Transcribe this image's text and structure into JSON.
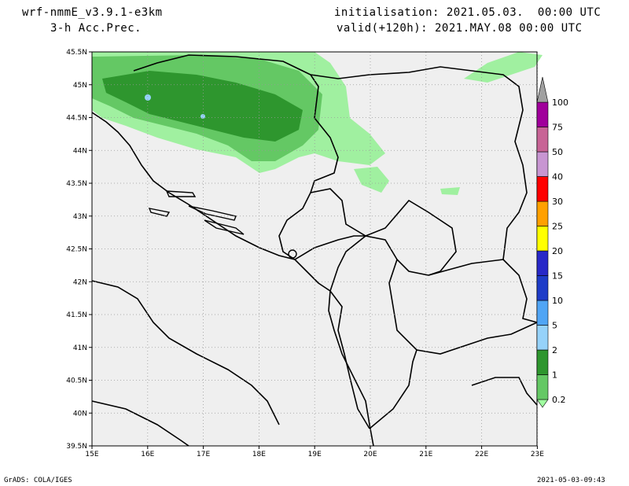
{
  "header": {
    "model": "wrf-nmmE_v3.9.1-e3km",
    "field": "3-h Acc.Prec.",
    "init": "initialisation: 2021.05.03.  00:00 UTC",
    "valid": "valid(+120h): 2021.MAY.08 00:00 UTC"
  },
  "footer": {
    "left": "GrADS: COLA/IGES",
    "right": "2021-05-03-09:43"
  },
  "map": {
    "lat_labels": [
      "45.5N",
      "45N",
      "44.5N",
      "44N",
      "43.5N",
      "43N",
      "42.5N",
      "42N",
      "41.5N",
      "41N",
      "40.5N",
      "40N",
      "39.5N"
    ],
    "lon_labels": [
      "15E",
      "16E",
      "17E",
      "18E",
      "19E",
      "20E",
      "21E",
      "22E",
      "23E"
    ],
    "background": "#efefef",
    "precip_colors": [
      "#a0f0a0",
      "#64c864",
      "#2e962e"
    ]
  },
  "colorbar": {
    "levels": [
      "0.2",
      "1",
      "2",
      "5",
      "10",
      "15",
      "20",
      "25",
      "30",
      "40",
      "50",
      "75",
      "100"
    ],
    "colors": [
      "#a0ffa0",
      "#64c864",
      "#2e962e",
      "#96d2fa",
      "#50a5f5",
      "#1e3cc8",
      "#2828c8",
      "#ffff00",
      "#ffa000",
      "#ff0000",
      "#c896d2",
      "#c86496",
      "#a0009b",
      "#a0a0a0"
    ]
  }
}
